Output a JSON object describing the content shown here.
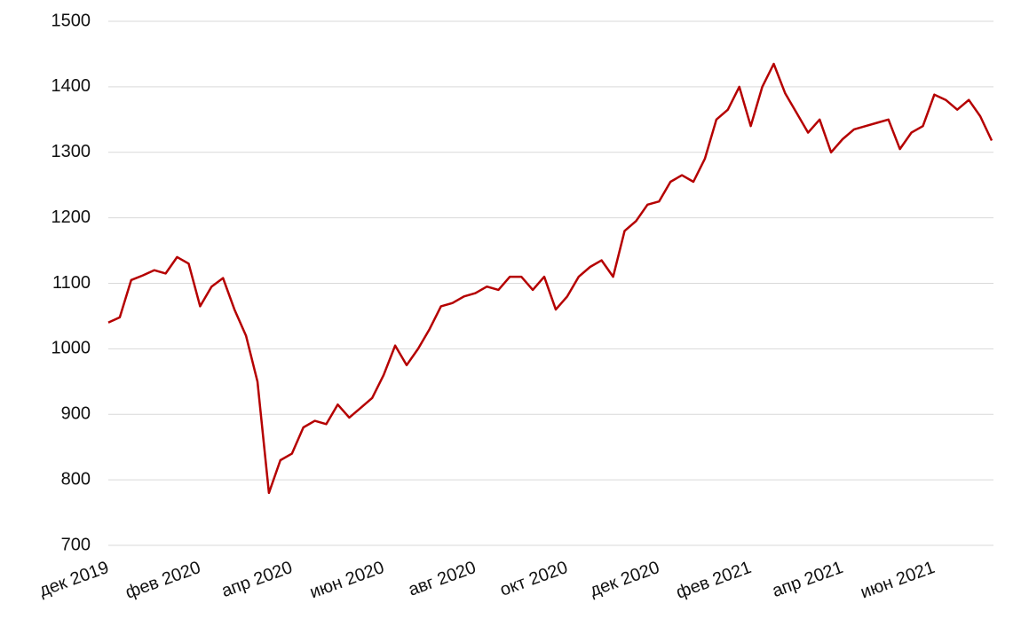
{
  "chart_data": {
    "type": "line",
    "categories": [
      "дек 2019",
      null,
      null,
      null,
      null,
      null,
      null,
      null,
      "фев 2020",
      null,
      null,
      null,
      null,
      null,
      null,
      null,
      "апр 2020",
      null,
      null,
      null,
      null,
      null,
      null,
      null,
      "июн 2020",
      null,
      null,
      null,
      null,
      null,
      null,
      null,
      "авг 2020",
      null,
      null,
      null,
      null,
      null,
      null,
      null,
      "окт 2020",
      null,
      null,
      null,
      null,
      null,
      null,
      null,
      "дек 2020",
      null,
      null,
      null,
      null,
      null,
      null,
      null,
      "фев 2021",
      null,
      null,
      null,
      null,
      null,
      null,
      null,
      "апр 2021",
      null,
      null,
      null,
      null,
      null,
      null,
      null,
      "июн 2021",
      null,
      null,
      null,
      null,
      null
    ],
    "series": [
      {
        "color": "#b50000",
        "values": [
          1040,
          1048,
          1105,
          1112,
          1120,
          1115,
          1140,
          1130,
          1065,
          1095,
          1108,
          1060,
          1020,
          950,
          780,
          830,
          840,
          880,
          890,
          885,
          915,
          895,
          910,
          925,
          960,
          1005,
          975,
          1000,
          1030,
          1065,
          1070,
          1080,
          1085,
          1095,
          1090,
          1110,
          1110,
          1090,
          1110,
          1060,
          1080,
          1110,
          1125,
          1135,
          1110,
          1180,
          1195,
          1220,
          1225,
          1255,
          1265,
          1255,
          1290,
          1350,
          1365,
          1400,
          1340,
          1400,
          1435,
          1390,
          1360,
          1330,
          1350,
          1300,
          1320,
          1335,
          1340,
          1345,
          1350,
          1305,
          1330,
          1340,
          1388,
          1380,
          1365,
          1380,
          1355,
          1318
        ]
      }
    ],
    "ylim": [
      700,
      1500
    ],
    "yticks": [
      700,
      800,
      900,
      1000,
      1100,
      1200,
      1300,
      1400,
      1500
    ],
    "grid": true
  }
}
